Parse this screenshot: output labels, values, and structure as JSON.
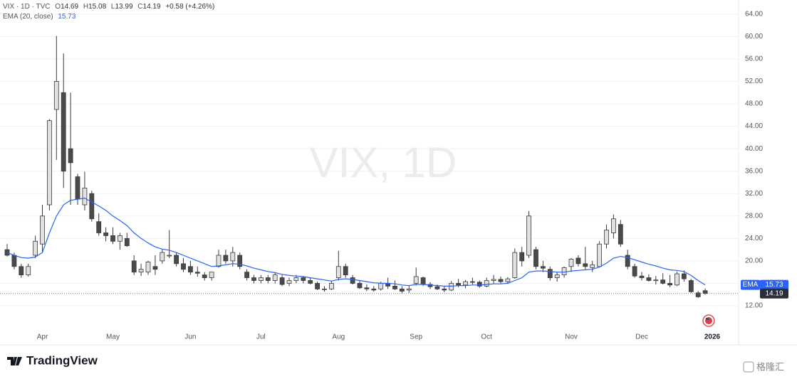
{
  "chart_data": {
    "type": "candlestick",
    "watermark": "VIX, 1D",
    "ohlc_prefixes": [
      "O",
      "H",
      "L",
      "C"
    ],
    "change": "+0.58 (+4.26%)",
    "ema_tag": "EMA",
    "brand": "TradingView",
    "corner_mark": "格隆汇",
    "up_color": "#e0e0e0",
    "down_color": "#4a4a4a",
    "wick_color": "#3a3a3a",
    "grid": true,
    "ylim": [
      8.45,
      65.5
    ],
    "yticks": [
      {
        "value": 12,
        "label": "12.00"
      },
      {
        "value": 16,
        "label": "16.00"
      },
      {
        "value": 20,
        "label": "20.00"
      },
      {
        "value": 24,
        "label": "24.00"
      },
      {
        "value": 28,
        "label": "28.00"
      },
      {
        "value": 32,
        "label": "32.00"
      },
      {
        "value": 36,
        "label": "36.00"
      },
      {
        "value": 40,
        "label": "40.00"
      },
      {
        "value": 44,
        "label": "44.00"
      },
      {
        "value": 48,
        "label": "48.00"
      },
      {
        "value": 52,
        "label": "52.00"
      },
      {
        "value": 56,
        "label": "56.00"
      },
      {
        "value": 60,
        "label": "60.00"
      },
      {
        "value": 64,
        "label": "64.00"
      }
    ],
    "categories": [
      null,
      null,
      null,
      null,
      null,
      "Apr",
      null,
      null,
      null,
      null,
      null,
      null,
      null,
      null,
      null,
      "May",
      null,
      null,
      null,
      null,
      null,
      null,
      null,
      null,
      null,
      null,
      "Jun",
      null,
      null,
      null,
      null,
      null,
      null,
      null,
      null,
      null,
      "Jul",
      null,
      null,
      null,
      null,
      null,
      null,
      null,
      null,
      null,
      null,
      "Aug",
      null,
      null,
      null,
      null,
      null,
      null,
      null,
      null,
      null,
      null,
      "Sep",
      null,
      null,
      null,
      null,
      null,
      null,
      null,
      null,
      null,
      "Oct",
      null,
      null,
      null,
      null,
      null,
      null,
      null,
      null,
      null,
      null,
      null,
      "Nov",
      null,
      null,
      null,
      null,
      null,
      null,
      null,
      null,
      null,
      "Dec",
      null,
      null,
      null,
      null,
      null,
      null,
      null,
      null,
      null,
      "2026"
    ],
    "series": [
      {
        "name": "VIX · 1D · TVC",
        "type": "candlestick",
        "open": [
          22,
          21,
          19,
          17.5,
          21,
          23,
          30,
          47,
          50,
          40,
          35,
          30,
          32,
          27,
          25,
          24.5,
          23.5,
          24,
          20,
          18,
          18,
          19,
          20,
          21,
          21,
          19.5,
          19,
          18,
          17.5,
          17,
          19,
          21,
          20,
          21,
          18,
          17,
          16.5,
          17,
          16.5,
          17,
          16,
          16.5,
          17,
          16.5,
          16,
          15,
          15,
          17,
          19,
          17,
          16,
          15.2,
          15,
          15,
          16,
          15.5,
          15,
          14.8,
          16,
          17,
          15.8,
          15.4,
          15,
          14.8,
          16,
          15.7,
          16.3,
          16.2,
          15.5,
          16.5,
          16.7,
          16.3,
          17,
          21.5,
          21,
          22,
          19,
          18.5,
          17,
          17.5,
          19,
          20.5,
          19.5,
          18.8,
          19,
          23,
          25,
          26.5,
          21,
          19,
          17.3,
          17,
          16.5,
          16.6,
          16,
          15.7,
          17.7,
          16.5,
          14.3,
          14.69,
          null
        ],
        "high": [
          23,
          21.5,
          19.5,
          19.5,
          24.5,
          30,
          45.3,
          60.1,
          57,
          50,
          35.5,
          35.9,
          32.5,
          28.5,
          26,
          26,
          25,
          25,
          21,
          19.5,
          20,
          21,
          22,
          25.5,
          21.5,
          20.5,
          20,
          19,
          18,
          18,
          22,
          22,
          22.5,
          21.5,
          18.5,
          17.5,
          17.5,
          17.5,
          18,
          17.5,
          17,
          17.5,
          17.3,
          17,
          16.3,
          15.5,
          16.5,
          21.8,
          19.5,
          17.5,
          16.5,
          15.8,
          15.5,
          16.3,
          17,
          16.5,
          15.5,
          15.6,
          18.8,
          17.2,
          16.2,
          15.8,
          15.5,
          16.4,
          16.8,
          16.6,
          17,
          16.5,
          17,
          17.5,
          17.2,
          17.1,
          22.2,
          22.5,
          28.9,
          22.5,
          20,
          19,
          18,
          19,
          20.5,
          21,
          22.5,
          20,
          23.5,
          26.5,
          28.3,
          27.3,
          22,
          19.5,
          18,
          17.6,
          17.3,
          17.8,
          17.5,
          18.1,
          18.3,
          16.8,
          14.6,
          15.08,
          null
        ],
        "low": [
          20.8,
          18.5,
          17,
          17.2,
          20.5,
          21.5,
          29,
          38,
          33,
          30,
          30,
          29,
          27,
          24.5,
          23.5,
          23,
          22,
          22.5,
          17.5,
          17.3,
          17.5,
          17.5,
          19.5,
          20.5,
          19,
          18,
          17.5,
          17.2,
          16.5,
          16.5,
          18.8,
          19.5,
          19,
          18.5,
          16.5,
          16,
          16,
          16,
          16,
          15.5,
          15.5,
          16,
          16,
          15.8,
          14.8,
          14.5,
          14.8,
          16.5,
          17,
          15.8,
          15,
          14.6,
          14.5,
          14.7,
          15,
          14.8,
          14.2,
          14.3,
          15.6,
          15.5,
          15,
          14.8,
          14.4,
          14.6,
          15.3,
          15.1,
          15.8,
          15.2,
          15.3,
          16,
          16,
          15.9,
          16.8,
          19,
          20.5,
          18.5,
          18,
          16.5,
          16.3,
          17,
          18,
          19,
          18.5,
          18,
          18.8,
          22.2,
          24,
          22.5,
          18.5,
          17,
          16.5,
          16.3,
          15.8,
          15.8,
          15.3,
          15.5,
          16.3,
          14.3,
          13.4,
          13.99,
          null
        ],
        "close": [
          21,
          19,
          17.5,
          19,
          23.5,
          28,
          45,
          52,
          36,
          37.5,
          31,
          33,
          27.5,
          25,
          24.5,
          23.5,
          24.5,
          22.7,
          18,
          18.5,
          19.8,
          18.5,
          21.5,
          21,
          19.5,
          18.5,
          18,
          17.8,
          17,
          18,
          21,
          20,
          21.5,
          19,
          17,
          16.5,
          17,
          16.5,
          17.5,
          15.8,
          16.5,
          17,
          16.5,
          16,
          15,
          15,
          16,
          19,
          17.5,
          16,
          15.2,
          15,
          14.8,
          16,
          15.5,
          15,
          14.6,
          15,
          17.2,
          15.8,
          15.4,
          15,
          14.8,
          16,
          15.7,
          16.3,
          16.2,
          15.5,
          16.5,
          16.7,
          16.3,
          16.8,
          21.5,
          20,
          28,
          19,
          18.7,
          17,
          17.5,
          18.8,
          20.3,
          19.5,
          19,
          19.3,
          23,
          25.5,
          27.5,
          23,
          19,
          17.3,
          17,
          16.5,
          16.6,
          16,
          15.7,
          17.7,
          16.8,
          14.5,
          13.6,
          14.19,
          null
        ]
      },
      {
        "name": "EMA (20, close)",
        "type": "line",
        "color": "#2962ff",
        "values": [
          21.5,
          21,
          20.6,
          20.5,
          20.7,
          21.5,
          25,
          28,
          30,
          30.8,
          31,
          31.2,
          30.5,
          29.8,
          29,
          28,
          27.2,
          26.3,
          25,
          24,
          23.2,
          22.5,
          22.1,
          21.9,
          21.5,
          21,
          20.5,
          20,
          19.5,
          19,
          19.1,
          19.3,
          19.5,
          19.4,
          19.1,
          18.7,
          18.4,
          18.1,
          17.9,
          17.6,
          17.4,
          17.3,
          17.2,
          17,
          16.8,
          16.6,
          16.4,
          16.7,
          16.8,
          16.7,
          16.5,
          16.3,
          16.1,
          16,
          16,
          15.9,
          15.7,
          15.6,
          15.8,
          15.8,
          15.7,
          15.6,
          15.5,
          15.5,
          15.6,
          15.6,
          15.7,
          15.7,
          15.8,
          15.9,
          15.9,
          16,
          16.5,
          17,
          18,
          18.2,
          18.2,
          18.1,
          18,
          18,
          18.2,
          18.3,
          18.4,
          18.5,
          18.9,
          19.6,
          20.5,
          20.8,
          20.6,
          20.2,
          19.8,
          19.4,
          19.1,
          18.7,
          18.4,
          18.3,
          18.1,
          17.4,
          16.5,
          15.73,
          null
        ]
      }
    ]
  }
}
